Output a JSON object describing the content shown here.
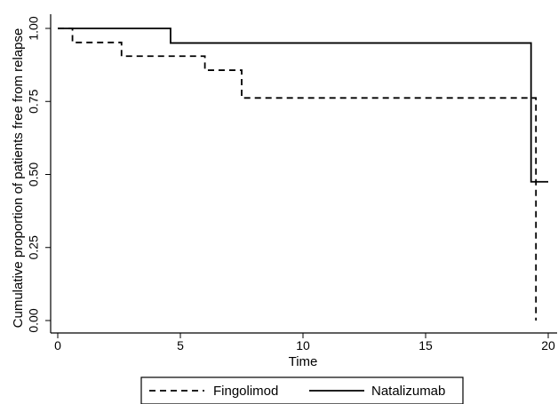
{
  "chart_data": {
    "type": "line",
    "subtype": "step",
    "title": "",
    "xlabel": "Time",
    "ylabel": "Cumulative proportion of patients free from relapse",
    "xlim": [
      0,
      20
    ],
    "ylim": [
      0,
      1
    ],
    "xticks": [
      "0",
      "5",
      "10",
      "15",
      "20"
    ],
    "yticks": [
      "0.00",
      "0.25",
      "0.50",
      "0.75",
      "1.00"
    ],
    "grid": false,
    "legend_position": "bottom",
    "series": [
      {
        "name": "Fingolimod",
        "style": "dashed",
        "color": "#000000",
        "x": [
          0,
          0.6,
          2.6,
          6.0,
          7.5,
          19.5,
          19.5
        ],
        "y": [
          1.0,
          0.952,
          0.905,
          0.857,
          0.762,
          0.762,
          0.0
        ]
      },
      {
        "name": "Natalizumab",
        "style": "solid",
        "color": "#000000",
        "x": [
          0,
          4.6,
          19.3,
          20.0
        ],
        "y": [
          1.0,
          0.95,
          0.475,
          0.475
        ]
      }
    ]
  }
}
